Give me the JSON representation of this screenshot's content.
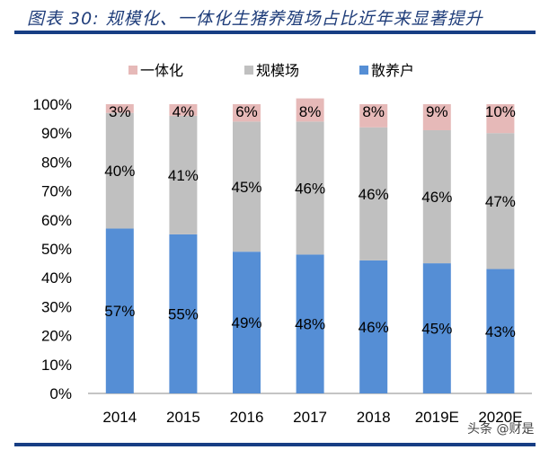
{
  "title": "图表 30: 规模化、一体化生猪养殖场占比近年来显著提升",
  "watermark": "头条 @财是",
  "chart_data": {
    "type": "bar",
    "stacked": true,
    "categories": [
      "2014",
      "2015",
      "2016",
      "2017",
      "2018",
      "2019E",
      "2020E"
    ],
    "series": [
      {
        "name": "散养户",
        "color": "#558ed5",
        "values": [
          57,
          55,
          49,
          48,
          46,
          45,
          43
        ]
      },
      {
        "name": "规模场",
        "color": "#c0c0c0",
        "values": [
          40,
          41,
          45,
          46,
          46,
          46,
          47
        ]
      },
      {
        "name": "一体化",
        "color": "#e6b9b8",
        "values": [
          3,
          4,
          6,
          8,
          8,
          9,
          10
        ]
      }
    ],
    "legend_order": [
      "一体化",
      "规模场",
      "散养户"
    ],
    "legend_position": "top",
    "yticks": [
      "0%",
      "10%",
      "20%",
      "30%",
      "40%",
      "50%",
      "60%",
      "70%",
      "80%",
      "90%",
      "100%"
    ],
    "ylim": [
      0,
      100
    ],
    "ylabel": "",
    "xlabel": ""
  }
}
